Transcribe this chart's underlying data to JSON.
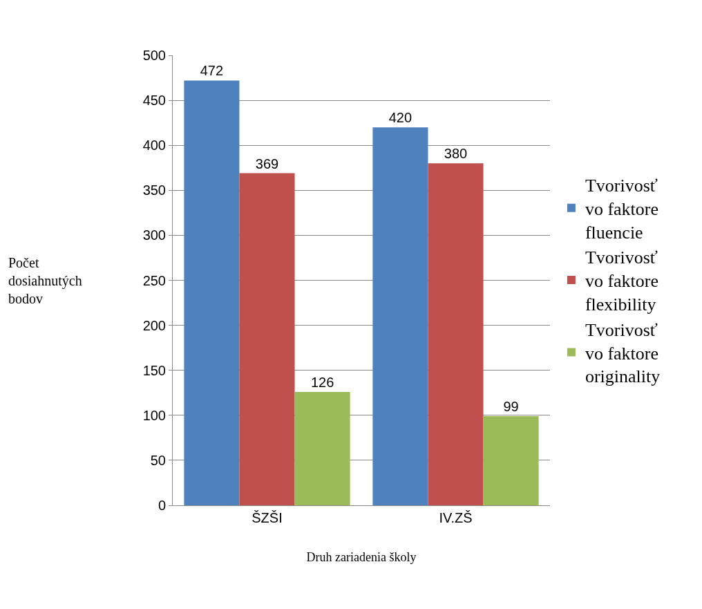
{
  "chart_data": {
    "type": "bar",
    "categories": [
      "ŠZŠI",
      "IV.ZŠ"
    ],
    "series": [
      {
        "name": "Tvorivosť vo faktore fluencie",
        "color": "#4f81bd",
        "values": [
          472,
          420
        ]
      },
      {
        "name": "Tvorivosť vo faktore flexibility",
        "color": "#c0504d",
        "values": [
          369,
          380
        ]
      },
      {
        "name": "Tvorivosť vo faktore originality",
        "color": "#9bbb59",
        "values": [
          126,
          99
        ]
      }
    ],
    "xlabel": "Druh zariadenia školy",
    "ylabel": "Počet dosiahnutých bodov",
    "ylim": [
      0,
      500
    ],
    "yticks": [
      0,
      50,
      100,
      150,
      200,
      250,
      300,
      350,
      400,
      450,
      500
    ],
    "grid": "y",
    "legend": "right",
    "data_labels": true
  }
}
